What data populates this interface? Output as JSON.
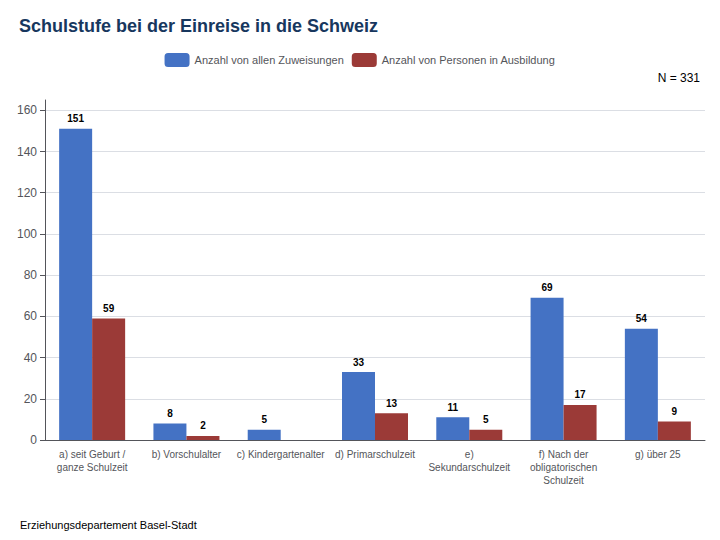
{
  "chart_data": {
    "type": "bar",
    "title": "Schulstufe bei der Einreise in die Schweiz",
    "annotations": [
      "N = 331",
      "Erziehungsdepartement Basel-Stadt"
    ],
    "categories": [
      "a) seit Geburt /\nganze Schulzeit",
      "b) Vorschulalter",
      "c) Kindergartenalter",
      "d) Primarschulzeit",
      "e)\nSekundarschulzeit",
      "f) Nach der\nobligatorischen\nSchulzeit",
      "g) über 25"
    ],
    "series": [
      {
        "name": "Anzahl von allen Zuweisungen",
        "color": "#4472C4",
        "values": [
          151,
          8,
          5,
          33,
          11,
          69,
          54
        ]
      },
      {
        "name": "Anzahl von Personen in Ausbildung",
        "color": "#9B3A37",
        "values": [
          59,
          2,
          0,
          13,
          5,
          17,
          9
        ],
        "value_labels": [
          "59",
          "2",
          null,
          "13",
          "5",
          "17",
          "9"
        ]
      }
    ],
    "ylim": [
      0,
      165
    ],
    "yticks": [
      0,
      20,
      40,
      60,
      80,
      100,
      120,
      140,
      160
    ],
    "grid": true,
    "legend": "top",
    "data_labels": true
  }
}
